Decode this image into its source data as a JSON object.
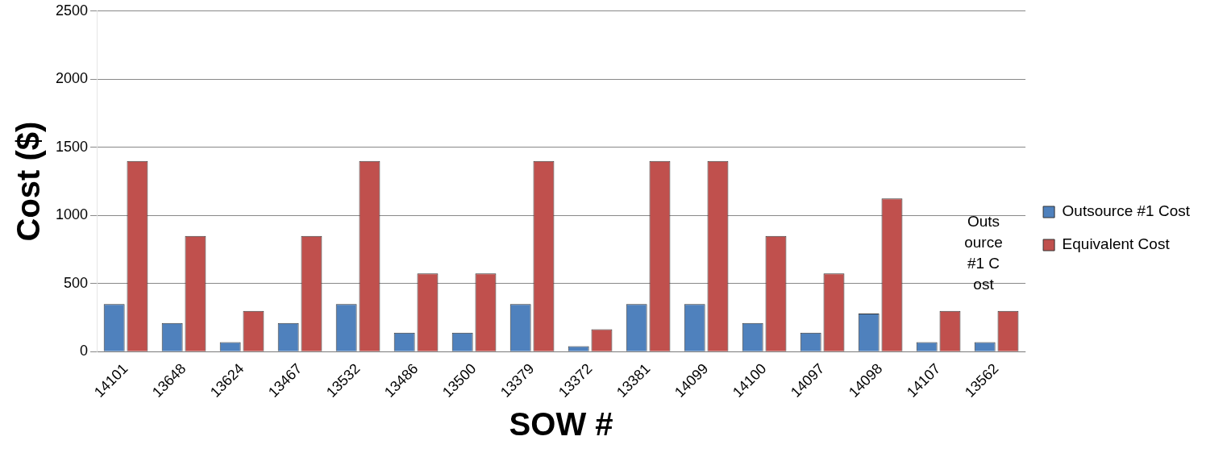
{
  "chart_data": {
    "type": "bar",
    "xlabel": "SOW #",
    "ylabel": "Cost ($)",
    "categories": [
      "14101",
      "13648",
      "13624",
      "13467",
      "13532",
      "13486",
      "13500",
      "13379",
      "13372",
      "13381",
      "14099",
      "14100",
      "14097",
      "14098",
      "14107",
      "13562"
    ],
    "series": [
      {
        "name": "Outsource #1 Cost",
        "color": "#4f81bd",
        "values": [
          350,
          210,
          70,
          210,
          350,
          140,
          140,
          350,
          40,
          350,
          350,
          210,
          140,
          280,
          70,
          70
        ]
      },
      {
        "name": "Equivalent Cost",
        "color": "#c0504d",
        "values": [
          1400,
          850,
          300,
          850,
          1400,
          575,
          575,
          1400,
          165,
          1400,
          1400,
          850,
          575,
          1125,
          300,
          300
        ]
      }
    ],
    "ylim": [
      0,
      2500
    ],
    "yticks": [
      0,
      500,
      1000,
      1500,
      2000,
      2500
    ],
    "grid": "y",
    "legend": "right",
    "annotations": [
      "Outsource #1 Cost"
    ]
  }
}
